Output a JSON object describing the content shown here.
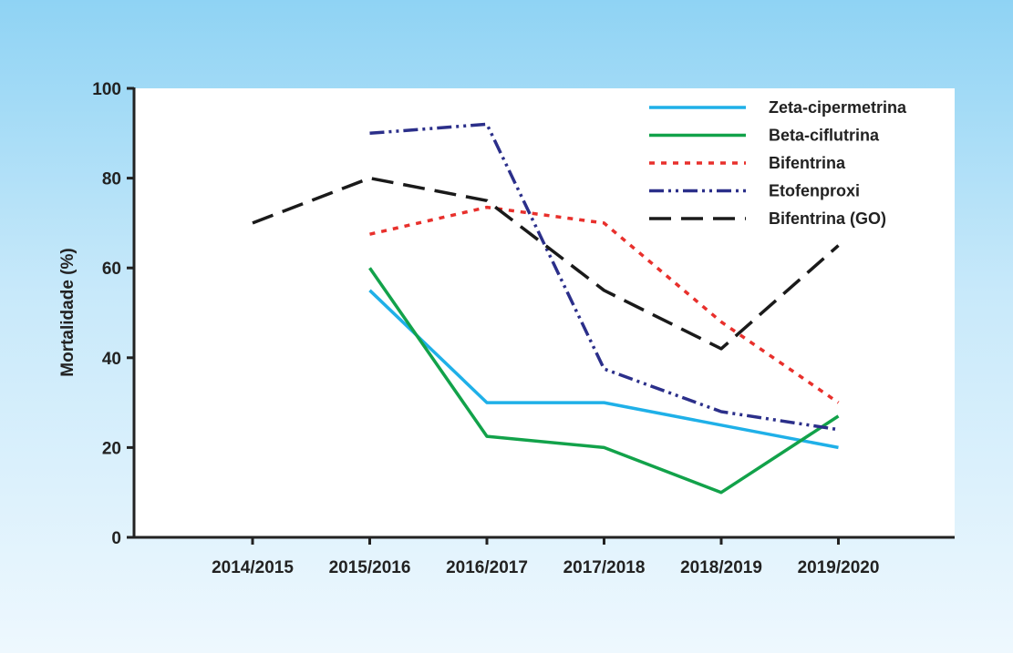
{
  "chart_data": {
    "type": "line",
    "title": "",
    "xlabel": "",
    "ylabel": "Mortalidade (%)",
    "ylim": [
      0,
      100
    ],
    "yticks": [
      0,
      20,
      40,
      60,
      80,
      100
    ],
    "categories": [
      "2014/2015",
      "2015/2016",
      "2016/2017",
      "2017/2018",
      "2018/2019",
      "2019/2020"
    ],
    "grid": false,
    "legend_position": "top-right",
    "series": [
      {
        "name": "Zeta-cipermetrina",
        "values": [
          null,
          55,
          30,
          30,
          25,
          20
        ],
        "color": "#1fb0e8",
        "style": "solid"
      },
      {
        "name": "Beta-ciflutrina",
        "values": [
          null,
          60,
          22.5,
          20,
          10,
          27
        ],
        "color": "#12a24a",
        "style": "solid"
      },
      {
        "name": "Bifentrina",
        "values": [
          null,
          67.5,
          73.5,
          70,
          48,
          30
        ],
        "color": "#e8302c",
        "style": "dotted"
      },
      {
        "name": "Etofenproxi",
        "values": [
          null,
          90,
          92,
          37.5,
          28,
          24
        ],
        "color": "#2b2f8a",
        "style": "dashdot"
      },
      {
        "name": "Bifentrina (GO)",
        "values": [
          70,
          80,
          75,
          55,
          42,
          65
        ],
        "color": "#1a1a1a",
        "style": "dashed"
      }
    ]
  }
}
